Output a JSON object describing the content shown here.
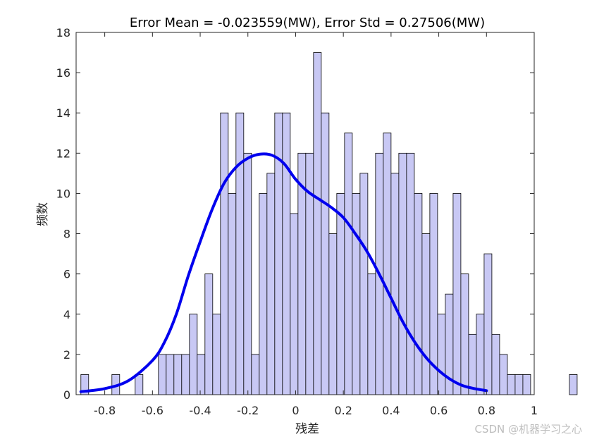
{
  "chart_data": {
    "type": "bar",
    "title": "Error Mean = -0.023559(MW), Error Std = 0.27506(MW)",
    "xlabel": "残差",
    "ylabel": "频数",
    "xlim": [
      -0.92,
      1.0
    ],
    "ylim": [
      0,
      18
    ],
    "x_ticks": [
      "-0.8",
      "-0.6",
      "-0.4",
      "-0.2",
      "0",
      "0.2",
      "0.4",
      "0.6",
      "0.8",
      "1"
    ],
    "y_ticks": [
      "0",
      "2",
      "4",
      "6",
      "8",
      "10",
      "12",
      "14",
      "16",
      "18"
    ],
    "bin_width": 0.0325,
    "bin_start": -0.9,
    "histogram_counts": [
      1,
      0,
      0,
      0,
      1,
      0,
      0,
      1,
      0,
      0,
      2,
      2,
      2,
      2,
      4,
      2,
      6,
      4,
      14,
      10,
      14,
      12,
      2,
      10,
      11,
      14,
      14,
      9,
      12,
      12,
      17,
      14,
      8,
      10,
      13,
      10,
      11,
      6,
      12,
      13,
      11,
      12,
      12,
      10,
      8,
      10,
      4,
      5,
      10,
      6,
      3,
      4,
      7,
      3,
      2,
      1,
      1,
      1,
      0,
      0,
      0,
      0,
      0,
      1
    ],
    "bar_color": "#c8c8f4",
    "bar_edge_color": "#000000",
    "series": [
      {
        "type": "line",
        "color": "#0000ee",
        "x": [
          -0.9,
          -0.8,
          -0.7,
          -0.6,
          -0.55,
          -0.5,
          -0.45,
          -0.4,
          -0.35,
          -0.3,
          -0.25,
          -0.2,
          -0.15,
          -0.1,
          -0.05,
          0.0,
          0.05,
          0.1,
          0.15,
          0.2,
          0.25,
          0.3,
          0.35,
          0.4,
          0.45,
          0.5,
          0.55,
          0.6,
          0.65,
          0.7,
          0.75,
          0.8
        ],
        "y": [
          0.15,
          0.3,
          0.7,
          1.7,
          2.6,
          4.0,
          5.9,
          7.6,
          9.2,
          10.5,
          11.3,
          11.75,
          11.95,
          11.9,
          11.5,
          10.7,
          10.1,
          9.7,
          9.3,
          8.8,
          8.0,
          7.1,
          6.0,
          4.8,
          3.6,
          2.6,
          1.8,
          1.2,
          0.75,
          0.45,
          0.3,
          0.2
        ]
      }
    ],
    "grid": false
  },
  "watermark": "CSDN @机器学习之心"
}
